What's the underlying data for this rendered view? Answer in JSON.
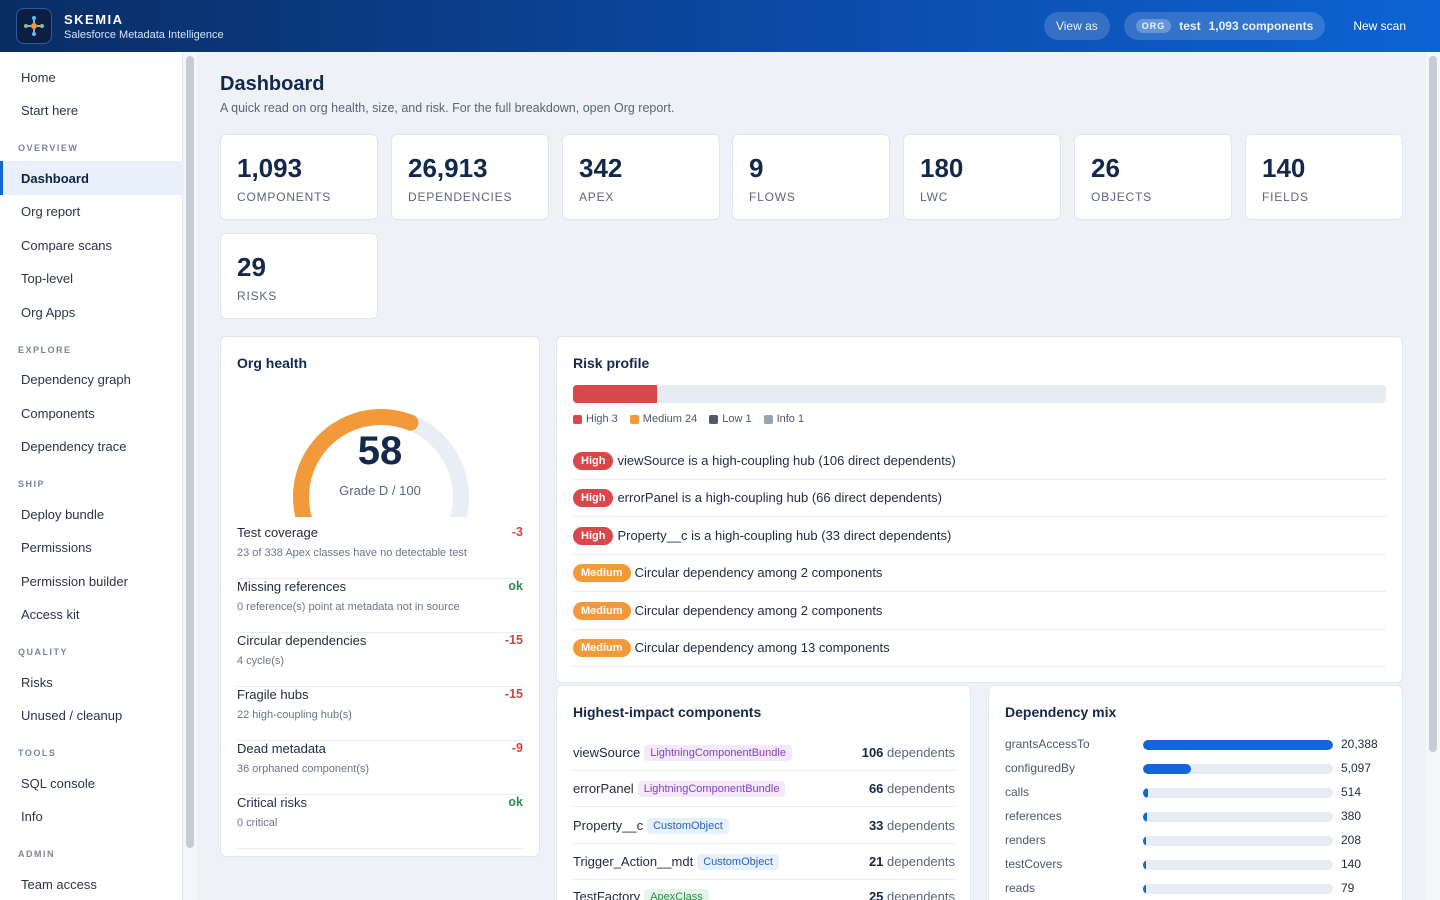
{
  "header": {
    "brand_name": "SKEMIA",
    "brand_sub": "Salesforce Metadata Intelligence",
    "view_as": "View as",
    "org_tag": "ORG",
    "org_name": "test",
    "org_components": "1,093 components",
    "new_scan": "New scan"
  },
  "sidebar": {
    "top": [
      "Home",
      "Start here"
    ],
    "sections": [
      {
        "title": "OVERVIEW",
        "items": [
          "Dashboard",
          "Org report",
          "Compare scans",
          "Top-level",
          "Org Apps"
        ]
      },
      {
        "title": "EXPLORE",
        "items": [
          "Dependency graph",
          "Components",
          "Dependency trace"
        ]
      },
      {
        "title": "SHIP",
        "items": [
          "Deploy bundle",
          "Permissions",
          "Permission builder",
          "Access kit"
        ]
      },
      {
        "title": "QUALITY",
        "items": [
          "Risks",
          "Unused / cleanup"
        ]
      },
      {
        "title": "TOOLS",
        "items": [
          "SQL console",
          "Info"
        ]
      },
      {
        "title": "ADMIN",
        "items": [
          "Team access"
        ]
      }
    ],
    "active": "Dashboard"
  },
  "page": {
    "title": "Dashboard",
    "subtitle": "A quick read on org health, size, and risk. For the full breakdown, open Org report."
  },
  "kpis": [
    {
      "value": "1,093",
      "label": "COMPONENTS"
    },
    {
      "value": "26,913",
      "label": "DEPENDENCIES"
    },
    {
      "value": "342",
      "label": "APEX"
    },
    {
      "value": "9",
      "label": "FLOWS"
    },
    {
      "value": "180",
      "label": "LWC"
    },
    {
      "value": "26",
      "label": "OBJECTS"
    },
    {
      "value": "140",
      "label": "FIELDS"
    },
    {
      "value": "29",
      "label": "RISKS"
    }
  ],
  "org_health": {
    "title": "Org health",
    "score": "58",
    "score_fraction": 0.58,
    "grade": "Grade D / 100",
    "rows": [
      {
        "name": "Test coverage",
        "desc": "23 of 338 Apex classes have no detectable test",
        "value": "-3",
        "status": "neg"
      },
      {
        "name": "Missing references",
        "desc": "0 reference(s) point at metadata not in source",
        "value": "ok",
        "status": "ok"
      },
      {
        "name": "Circular dependencies",
        "desc": "4 cycle(s)",
        "value": "-15",
        "status": "neg"
      },
      {
        "name": "Fragile hubs",
        "desc": "22 high-coupling hub(s)",
        "value": "-15",
        "status": "neg"
      },
      {
        "name": "Dead metadata",
        "desc": "36 orphaned component(s)",
        "value": "-9",
        "status": "neg"
      },
      {
        "name": "Critical risks",
        "desc": "0 critical",
        "value": "ok",
        "status": "ok"
      }
    ]
  },
  "risk_profile": {
    "title": "Risk profile",
    "high_fraction": 0.103,
    "legend": [
      {
        "label": "High 3",
        "color": "#d8474a"
      },
      {
        "label": "Medium 24",
        "color": "#f29a3a"
      },
      {
        "label": "Low 1",
        "color": "#555b66"
      },
      {
        "label": "Info 1",
        "color": "#9aa3b2"
      }
    ],
    "items": [
      {
        "level": "High",
        "text": "viewSource is a high-coupling hub (106 direct dependents)"
      },
      {
        "level": "High",
        "text": "errorPanel is a high-coupling hub (66 direct dependents)"
      },
      {
        "level": "High",
        "text": "Property__c is a high-coupling hub (33 direct dependents)"
      },
      {
        "level": "Medium",
        "text": "Circular dependency among 2 components"
      },
      {
        "level": "Medium",
        "text": "Circular dependency among 2 components"
      },
      {
        "level": "Medium",
        "text": "Circular dependency among 13 components"
      }
    ]
  },
  "impact": {
    "title": "Highest-impact components",
    "dependents_word": "dependents",
    "rows": [
      {
        "name": "viewSource",
        "type": "LightningComponentBundle",
        "kind": "lwc",
        "count": "106"
      },
      {
        "name": "errorPanel",
        "type": "LightningComponentBundle",
        "kind": "lwc",
        "count": "66"
      },
      {
        "name": "Property__c",
        "type": "CustomObject",
        "kind": "obj",
        "count": "33"
      },
      {
        "name": "Trigger_Action__mdt",
        "type": "CustomObject",
        "kind": "obj",
        "count": "21"
      },
      {
        "name": "TestFactory",
        "type": "ApexClass",
        "kind": "apex",
        "count": "25"
      }
    ]
  },
  "mix": {
    "title": "Dependency mix",
    "max": 20388,
    "rows": [
      {
        "name": "grantsAccessTo",
        "value": 20388,
        "label": "20,388"
      },
      {
        "name": "configuredBy",
        "value": 5097,
        "label": "5,097"
      },
      {
        "name": "calls",
        "value": 514,
        "label": "514"
      },
      {
        "name": "references",
        "value": 380,
        "label": "380"
      },
      {
        "name": "renders",
        "value": 208,
        "label": "208"
      },
      {
        "name": "testCovers",
        "value": 140,
        "label": "140"
      },
      {
        "name": "reads",
        "value": 79,
        "label": "79"
      }
    ]
  },
  "colors": {
    "accent": "#1366d6",
    "high": "#d8474a",
    "medium": "#f29a3a",
    "gauge": "#f29a3a"
  }
}
